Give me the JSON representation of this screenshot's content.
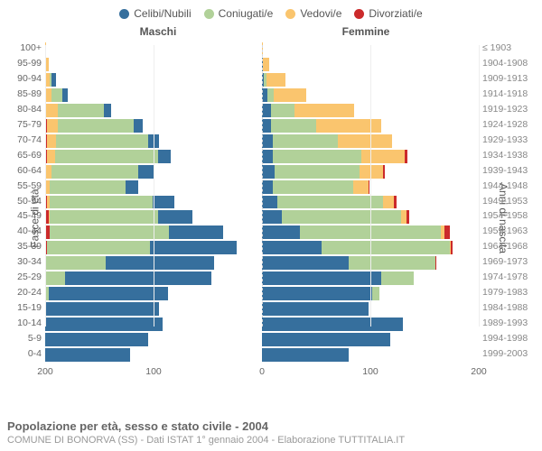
{
  "chart": {
    "type": "population-pyramid",
    "background_color": "#ffffff",
    "grid_color": "#eeeeee",
    "center_line_color": "#d8d8d8",
    "text_color": "#666666",
    "label_fontsize": 10.5,
    "title_fontsize": 13,
    "max_value": 200,
    "x_ticks": [
      200,
      100,
      0,
      100,
      200
    ],
    "legend": [
      {
        "label": "Celibi/Nubili",
        "color": "#366f9d"
      },
      {
        "label": "Coniugati/e",
        "color": "#b1d199"
      },
      {
        "label": "Vedovi/e",
        "color": "#fac56e"
      },
      {
        "label": "Divorziati/e",
        "color": "#cb2a2b"
      }
    ],
    "headers": {
      "left": "Maschi",
      "right": "Femmine"
    },
    "yaxis_left": "Fasce di età",
    "yaxis_right": "Anni di nascita",
    "rows": [
      {
        "age": "100+",
        "year": "≤ 1903",
        "m": [
          0,
          0,
          1,
          0
        ],
        "f": [
          0,
          0,
          1,
          0
        ]
      },
      {
        "age": "95-99",
        "year": "1904-1908",
        "m": [
          0,
          0,
          3,
          0
        ],
        "f": [
          1,
          0,
          6,
          0
        ]
      },
      {
        "age": "90-94",
        "year": "1909-1913",
        "m": [
          4,
          2,
          4,
          0
        ],
        "f": [
          2,
          2,
          18,
          0
        ]
      },
      {
        "age": "85-89",
        "year": "1914-1918",
        "m": [
          5,
          10,
          6,
          0
        ],
        "f": [
          5,
          6,
          30,
          0
        ]
      },
      {
        "age": "80-84",
        "year": "1919-1923",
        "m": [
          7,
          42,
          12,
          0
        ],
        "f": [
          8,
          22,
          55,
          0
        ]
      },
      {
        "age": "75-79",
        "year": "1924-1928",
        "m": [
          8,
          70,
          10,
          2
        ],
        "f": [
          8,
          42,
          60,
          0
        ]
      },
      {
        "age": "70-74",
        "year": "1929-1933",
        "m": [
          10,
          85,
          8,
          2
        ],
        "f": [
          10,
          60,
          50,
          0
        ]
      },
      {
        "age": "65-69",
        "year": "1934-1938",
        "m": [
          12,
          95,
          7,
          2
        ],
        "f": [
          10,
          82,
          40,
          2
        ]
      },
      {
        "age": "60-64",
        "year": "1939-1943",
        "m": [
          14,
          80,
          5,
          1
        ],
        "f": [
          12,
          78,
          22,
          1
        ]
      },
      {
        "age": "55-59",
        "year": "1944-1948",
        "m": [
          12,
          70,
          3,
          1
        ],
        "f": [
          10,
          74,
          14,
          1
        ]
      },
      {
        "age": "50-54",
        "year": "1949-1953",
        "m": [
          20,
          95,
          2,
          2
        ],
        "f": [
          14,
          98,
          10,
          2
        ]
      },
      {
        "age": "45-49",
        "year": "1954-1958",
        "m": [
          32,
          100,
          1,
          3
        ],
        "f": [
          18,
          110,
          5,
          3
        ]
      },
      {
        "age": "40-44",
        "year": "1959-1963",
        "m": [
          50,
          110,
          0,
          4
        ],
        "f": [
          35,
          130,
          3,
          5
        ]
      },
      {
        "age": "35-39",
        "year": "1964-1968",
        "m": [
          80,
          95,
          0,
          2
        ],
        "f": [
          55,
          118,
          1,
          2
        ]
      },
      {
        "age": "30-34",
        "year": "1969-1973",
        "m": [
          100,
          55,
          0,
          1
        ],
        "f": [
          80,
          80,
          0,
          1
        ]
      },
      {
        "age": "25-29",
        "year": "1974-1978",
        "m": [
          135,
          18,
          0,
          0
        ],
        "f": [
          110,
          30,
          0,
          0
        ]
      },
      {
        "age": "20-24",
        "year": "1979-1983",
        "m": [
          110,
          3,
          0,
          0
        ],
        "f": [
          102,
          6,
          0,
          0
        ]
      },
      {
        "age": "15-19",
        "year": "1984-1988",
        "m": [
          105,
          0,
          0,
          0
        ],
        "f": [
          98,
          0,
          0,
          0
        ]
      },
      {
        "age": "10-14",
        "year": "1989-1993",
        "m": [
          108,
          0,
          0,
          0
        ],
        "f": [
          130,
          0,
          0,
          0
        ]
      },
      {
        "age": "5-9",
        "year": "1994-1998",
        "m": [
          95,
          0,
          0,
          0
        ],
        "f": [
          118,
          0,
          0,
          0
        ]
      },
      {
        "age": "0-4",
        "year": "1999-2003",
        "m": [
          78,
          0,
          0,
          0
        ],
        "f": [
          80,
          0,
          0,
          0
        ]
      }
    ]
  },
  "footer": {
    "title": "Popolazione per età, sesso e stato civile - 2004",
    "subtitle": "COMUNE DI BONORVA (SS) - Dati ISTAT 1° gennaio 2004 - Elaborazione TUTTITALIA.IT"
  }
}
